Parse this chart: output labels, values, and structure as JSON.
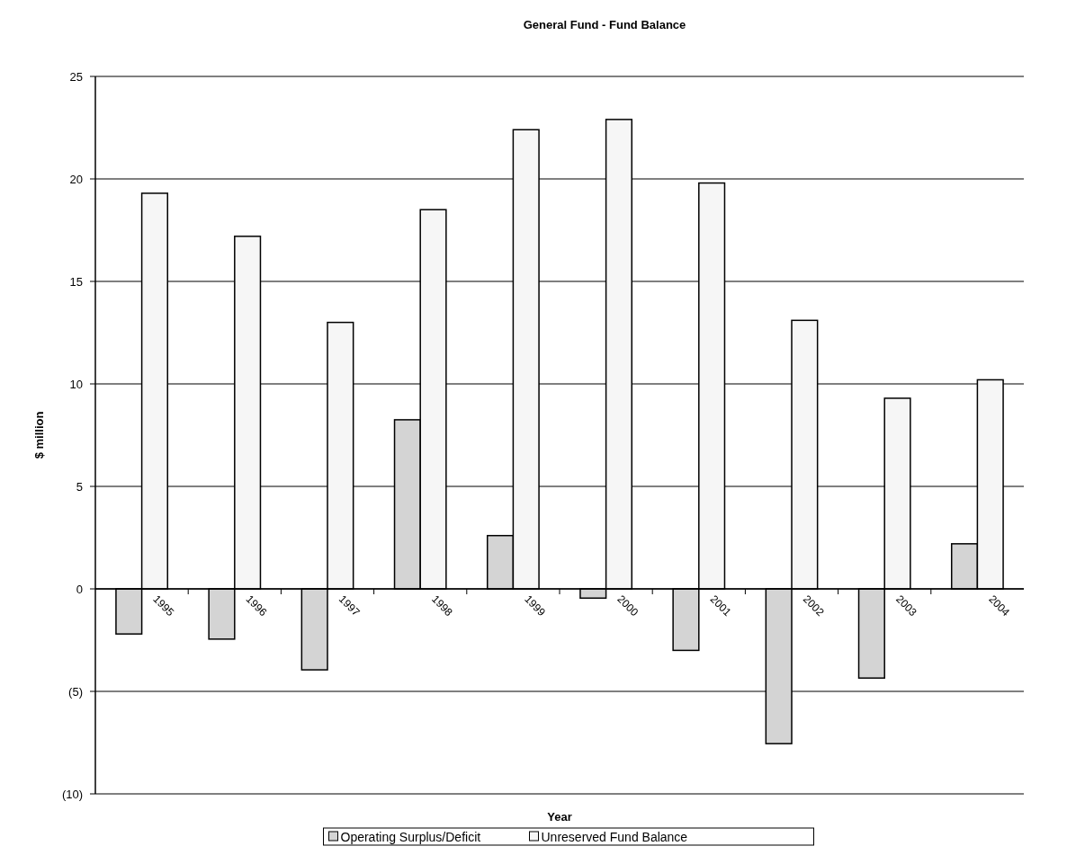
{
  "chart_data": {
    "type": "bar",
    "title": "General Fund - Fund Balance",
    "xlabel": "Year",
    "ylabel": "$ million",
    "categories": [
      "1995",
      "1996",
      "1997",
      "1998",
      "1999",
      "2000",
      "2001",
      "2002",
      "2003",
      "2004"
    ],
    "series": [
      {
        "name": "Operating Surplus/Deficit",
        "color": "#d4d4d4",
        "values": [
          -2.2,
          -2.45,
          -3.95,
          8.25,
          2.6,
          -0.45,
          -3.0,
          -7.55,
          -4.35,
          2.2
        ]
      },
      {
        "name": "Unreserved Fund Balance",
        "color": "#f6f6f6",
        "values": [
          19.3,
          17.2,
          13.0,
          18.5,
          22.4,
          22.9,
          19.8,
          13.1,
          9.3,
          10.2
        ]
      }
    ],
    "ylim": [
      -10,
      25
    ],
    "yticks": [
      {
        "value": -10,
        "label": "(10)"
      },
      {
        "value": -5,
        "label": "(5)"
      },
      0,
      5,
      10,
      15,
      20,
      25
    ],
    "grid": "y",
    "legend": "bottom"
  }
}
